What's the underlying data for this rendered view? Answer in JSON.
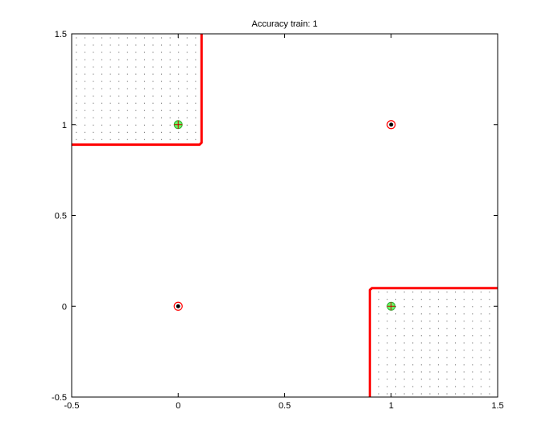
{
  "chart_data": {
    "type": "scatter",
    "title": "Accuracy train: 1",
    "xlabel": "",
    "ylabel": "",
    "xlim": [
      -0.5,
      1.5
    ],
    "ylim": [
      -0.5,
      1.5
    ],
    "x_ticks": [
      -0.5,
      0,
      0.5,
      1,
      1.5
    ],
    "y_ticks": [
      -0.5,
      0,
      0.5,
      1,
      1.5
    ],
    "x_tick_labels": [
      "-0.5",
      "0",
      "0.5",
      "1",
      "1.5"
    ],
    "y_tick_labels": [
      "-0.5",
      "0",
      "0.5",
      "1",
      "1.5"
    ],
    "grid": false,
    "series": [
      {
        "marker": "green plus in circle",
        "color": "#22cc22",
        "x": [
          0,
          1
        ],
        "y": [
          1,
          0
        ]
      },
      {
        "marker": "black dot in red circle",
        "color": "#000000",
        "x": [
          0,
          1
        ],
        "y": [
          0,
          1
        ]
      }
    ],
    "decision_boundary": {
      "color": "#ff0000",
      "paths": [
        [
          [
            -0.5,
            0.89
          ],
          [
            0.1,
            0.89
          ],
          [
            0.11,
            0.9
          ],
          [
            0.11,
            1.5
          ]
        ],
        [
          [
            0.9,
            -0.5
          ],
          [
            0.9,
            0.09
          ],
          [
            0.91,
            0.1
          ],
          [
            1.5,
            0.1
          ]
        ]
      ]
    },
    "dotted_regions": [
      {
        "x": [
          -0.5,
          0.1
        ],
        "y": [
          0.9,
          1.5
        ]
      },
      {
        "x": [
          0.92,
          1.5
        ],
        "y": [
          -0.5,
          0.09
        ]
      }
    ]
  }
}
